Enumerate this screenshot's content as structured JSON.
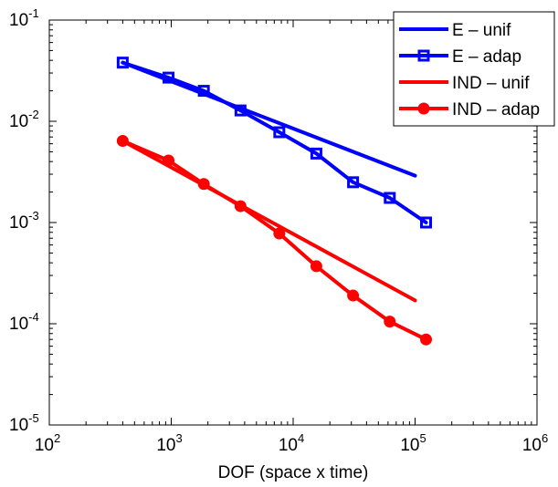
{
  "chart_data": {
    "type": "line",
    "title": "",
    "xlabel": "DOF (space x time)",
    "ylabel": "",
    "x_scale": "log",
    "y_scale": "log",
    "xlim": [
      100,
      1000000
    ],
    "ylim": [
      1e-05,
      0.1
    ],
    "grid": false,
    "legend_position": "top-right",
    "x_ticks": [
      {
        "base": "10",
        "exp": "2",
        "value": 100
      },
      {
        "base": "10",
        "exp": "3",
        "value": 1000
      },
      {
        "base": "10",
        "exp": "4",
        "value": 10000
      },
      {
        "base": "10",
        "exp": "5",
        "value": 100000
      },
      {
        "base": "10",
        "exp": "6",
        "value": 1000000
      }
    ],
    "y_ticks": [
      {
        "base": "10",
        "exp": "-5",
        "value": 1e-05
      },
      {
        "base": "10",
        "exp": "-4",
        "value": 0.0001
      },
      {
        "base": "10",
        "exp": "-3",
        "value": 0.001
      },
      {
        "base": "10",
        "exp": "-2",
        "value": 0.01
      },
      {
        "base": "10",
        "exp": "-1",
        "value": 0.1
      }
    ],
    "series": [
      {
        "name": "E – unif",
        "color": "#0000ff",
        "marker": "none",
        "x": [
          400,
          100000
        ],
        "y": [
          0.038,
          0.0029
        ]
      },
      {
        "name": "E – adap",
        "color": "#0000ff",
        "marker": "square",
        "x": [
          400,
          950,
          1850,
          3700,
          7700,
          15500,
          31000,
          62000,
          123000
        ],
        "y": [
          0.038,
          0.027,
          0.02,
          0.0128,
          0.0078,
          0.0048,
          0.0025,
          0.00175,
          0.001
        ]
      },
      {
        "name": "IND – unif",
        "color": "#ff0000",
        "marker": "none",
        "x": [
          400,
          100000
        ],
        "y": [
          0.0064,
          0.00017
        ]
      },
      {
        "name": "IND – adap",
        "color": "#ff0000",
        "marker": "circle",
        "x": [
          400,
          950,
          1850,
          3700,
          7700,
          15500,
          31000,
          62000,
          123000
        ],
        "y": [
          0.0064,
          0.0041,
          0.0024,
          0.00145,
          0.00078,
          0.00037,
          0.00019,
          0.000105,
          7e-05
        ]
      }
    ]
  }
}
